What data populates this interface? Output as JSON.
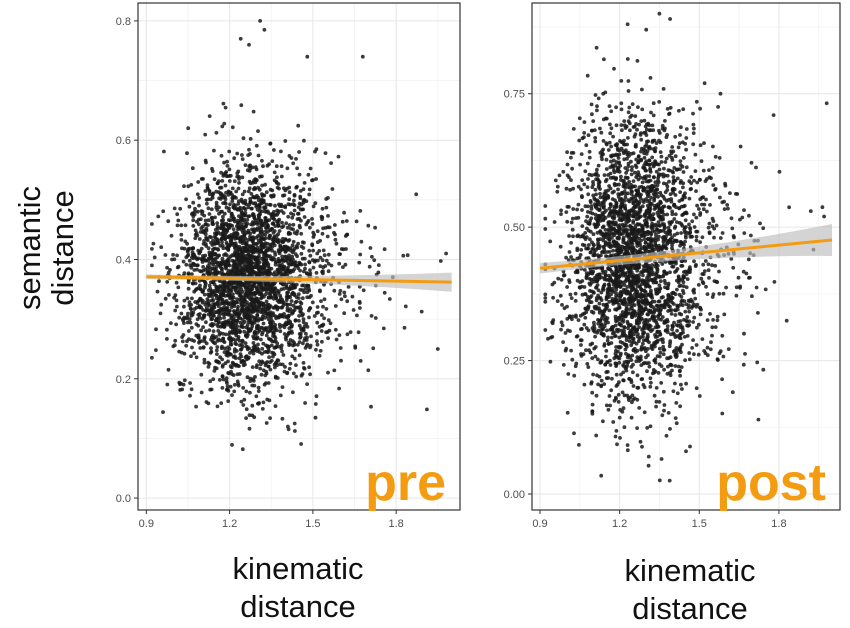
{
  "figure": {
    "ylabel_line1": "semantic",
    "ylabel_line2": "distance",
    "accent_color": "#f39c12",
    "point_color": "#1a1a1a",
    "ribbon_color": "#bdbdbd"
  },
  "chart_data": [
    {
      "type": "scatter",
      "title": "",
      "panel_label": "pre",
      "xlabel_line1": "kinematic",
      "xlabel_line2": "distance",
      "xlabel": "kinematic distance",
      "ylabel": "semantic distance",
      "xlim": [
        0.87,
        2.03
      ],
      "ylim": [
        -0.02,
        0.83
      ],
      "x_ticks": [
        0.9,
        1.2,
        1.5,
        1.8
      ],
      "x_tick_labels": [
        "0.9",
        "1.2",
        "1.5",
        "1.8"
      ],
      "y_ticks": [
        0.0,
        0.2,
        0.4,
        0.6,
        0.8
      ],
      "y_tick_labels": [
        "0.0",
        "0.2",
        "0.4",
        "0.6",
        "0.8"
      ],
      "grid": true,
      "points": {
        "n": 3000,
        "x_center": 1.25,
        "x_sd": 0.12,
        "y_center": 0.37,
        "y_sd": 0.09,
        "seed": 11,
        "outliers": [
          [
            1.31,
            0.8
          ],
          [
            1.24,
            0.77
          ],
          [
            1.27,
            0.76
          ],
          [
            1.48,
            0.74
          ],
          [
            1.68,
            0.74
          ],
          [
            1.41,
            0.12
          ],
          [
            1.98,
            0.41
          ],
          [
            1.95,
            0.25
          ]
        ]
      },
      "trend": {
        "x": [
          0.9,
          2.0
        ],
        "y": [
          0.371,
          0.362
        ],
        "ci_start": 0.004,
        "ci_end": 0.016
      }
    },
    {
      "type": "scatter",
      "title": "",
      "panel_label": "post",
      "xlabel_line1": "kinematic",
      "xlabel_line2": "distance",
      "xlabel": "kinematic distance",
      "ylabel": "semantic distance",
      "xlim": [
        0.87,
        2.03
      ],
      "ylim": [
        -0.03,
        0.92
      ],
      "x_ticks": [
        0.9,
        1.2,
        1.5,
        1.8
      ],
      "x_tick_labels": [
        "0.9",
        "1.2",
        "1.5",
        "1.8"
      ],
      "y_ticks": [
        0.0,
        0.25,
        0.5,
        0.75
      ],
      "y_tick_labels": [
        "0.00",
        "0.25",
        "0.50",
        "0.75"
      ],
      "grid": true,
      "points": {
        "n": 3000,
        "x_center": 1.24,
        "x_sd": 0.12,
        "y_center": 0.44,
        "y_sd": 0.13,
        "seed": 29,
        "outliers": [
          [
            1.35,
            0.9
          ],
          [
            1.39,
            0.89
          ],
          [
            1.23,
            0.88
          ],
          [
            1.3,
            0.87
          ],
          [
            1.58,
            0.75
          ],
          [
            1.78,
            0.71
          ],
          [
            1.92,
            0.53
          ],
          [
            1.97,
            0.52
          ],
          [
            1.31,
            0.07
          ],
          [
            1.45,
            0.08
          ]
        ]
      },
      "trend": {
        "x": [
          0.9,
          2.0
        ],
        "y": [
          0.423,
          0.476
        ],
        "ci_start": 0.01,
        "ci_end": 0.03
      }
    }
  ]
}
